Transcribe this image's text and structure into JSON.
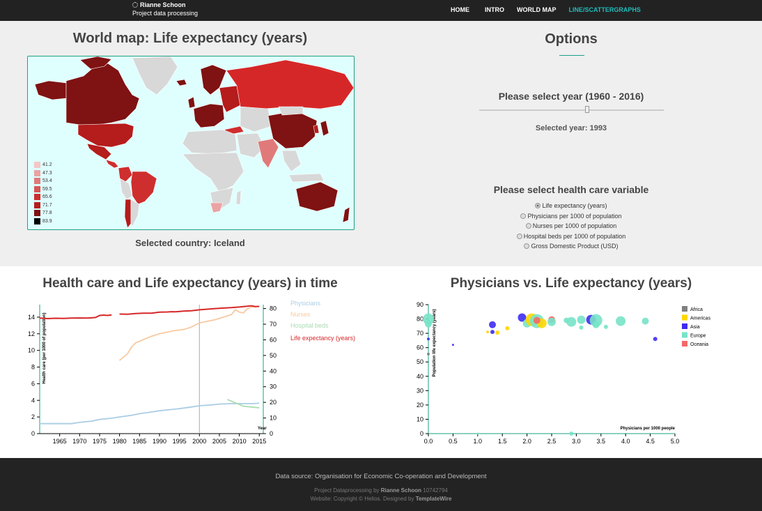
{
  "brand": {
    "name": "Rianne Schoon",
    "subtitle": "Project data processing"
  },
  "nav": {
    "items": [
      "HOME",
      "INTRO",
      "WORLD MAP",
      "LINE/SCATTERGRAPHS"
    ],
    "active": "LINE/SCATTERGRAPHS"
  },
  "map": {
    "title": "World map: Life expectancy (years)",
    "legend": [
      {
        "label": "41.2",
        "color": "#f4c6c6"
      },
      {
        "label": "47.3",
        "color": "#eba3a3"
      },
      {
        "label": "53.4",
        "color": "#e07a7a"
      },
      {
        "label": "59.5",
        "color": "#d95555"
      },
      {
        "label": "65.6",
        "color": "#cf2e2e"
      },
      {
        "label": "71.7",
        "color": "#b51c1c"
      },
      {
        "label": "77.8",
        "color": "#7f1212"
      },
      {
        "label": "83.9",
        "color": "#000000"
      }
    ],
    "selected_country": "Selected country: Iceland"
  },
  "options": {
    "title": "Options",
    "year_title": "Please select year (1960 - 2016)",
    "selected_year": "Selected year: 1993",
    "slider_value": 1993,
    "slider_range": [
      1960,
      2016
    ],
    "hc_title": "Please select health care variable",
    "variables": [
      {
        "label": "Life expectancy (years)",
        "checked": true
      },
      {
        "label": "Physicians per 1000 of population",
        "checked": false
      },
      {
        "label": "Nurses per 1000 of population",
        "checked": false
      },
      {
        "label": "Hospital beds per 1000 of population",
        "checked": false
      },
      {
        "label": "Gross Domestic Product (USD)",
        "checked": false
      }
    ]
  },
  "line_chart_title": "Health care and Life expectancy (years) in time",
  "scatter_title": "Physicians vs. Life expectancy (years)",
  "chart_data": [
    {
      "type": "line",
      "title": "Health care and Life expectancy (years) in time",
      "xlabel": "Year",
      "ylabel": "Health care (per 1000 of population)",
      "ylabel_right": "",
      "xlim": [
        1960,
        2016
      ],
      "ylim": [
        0,
        15.5
      ],
      "ylim_right": [
        0,
        82.5
      ],
      "x_ticks": [
        1965,
        1970,
        1975,
        1980,
        1985,
        1990,
        1995,
        2000,
        2005,
        2010,
        2015
      ],
      "y_ticks": [
        0,
        2,
        4,
        6,
        8,
        10,
        12,
        14
      ],
      "y_ticks_right": [
        0,
        10,
        20,
        30,
        40,
        50,
        60,
        70,
        80
      ],
      "marker_year": 2000,
      "legend_position": "right",
      "series": [
        {
          "name": "Physicians",
          "axis": "left",
          "color": "#aacde4",
          "points": [
            [
              1960,
              1.2
            ],
            [
              1965,
              1.2
            ],
            [
              1968,
              1.2
            ],
            [
              1970,
              1.35
            ],
            [
              1973,
              1.5
            ],
            [
              1975,
              1.7
            ],
            [
              1978,
              1.85
            ],
            [
              1980,
              2.0
            ],
            [
              1983,
              2.2
            ],
            [
              1985,
              2.4
            ],
            [
              1988,
              2.6
            ],
            [
              1990,
              2.75
            ],
            [
              1993,
              2.9
            ],
            [
              1995,
              3.0
            ],
            [
              1998,
              3.2
            ],
            [
              2000,
              3.35
            ],
            [
              2003,
              3.45
            ],
            [
              2005,
              3.55
            ],
            [
              2008,
              3.6
            ],
            [
              2010,
              3.6
            ],
            [
              2013,
              3.6
            ],
            [
              2015,
              3.65
            ]
          ]
        },
        {
          "name": "Nurses",
          "axis": "left",
          "color": "#f8c9a0",
          "points": [
            [
              1980,
              8.8
            ],
            [
              1982,
              9.6
            ],
            [
              1983,
              10.4
            ],
            [
              1984,
              10.9
            ],
            [
              1986,
              11.3
            ],
            [
              1988,
              11.7
            ],
            [
              1990,
              12.0
            ],
            [
              1992,
              12.2
            ],
            [
              1994,
              12.4
            ],
            [
              1996,
              12.5
            ],
            [
              1998,
              12.8
            ],
            [
              2000,
              13.3
            ],
            [
              2002,
              13.5
            ],
            [
              2004,
              13.7
            ],
            [
              2006,
              14.0
            ],
            [
              2008,
              14.3
            ],
            [
              2009,
              14.9
            ],
            [
              2010,
              14.6
            ],
            [
              2011,
              14.5
            ],
            [
              2012,
              15.0
            ],
            [
              2013,
              15.2
            ],
            [
              2015,
              15.3
            ]
          ]
        },
        {
          "name": "Hospital beds",
          "axis": "left",
          "color": "#a9ddb0",
          "points": [
            [
              2007,
              4.1
            ],
            [
              2009,
              3.7
            ],
            [
              2011,
              3.3
            ],
            [
              2013,
              3.2
            ],
            [
              2015,
              3.1
            ]
          ]
        },
        {
          "name": "Life expectancy (years)",
          "axis": "right",
          "color": "#d62728",
          "segments": [
            [
              [
                1960,
                73.9
              ],
              [
                1962,
                73.6
              ],
              [
                1964,
                73.8
              ],
              [
                1966,
                73.7
              ],
              [
                1968,
                73.9
              ],
              [
                1970,
                74.0
              ],
              [
                1972,
                73.9
              ],
              [
                1974,
                74.3
              ],
              [
                1975,
                75.6
              ],
              [
                1976,
                75.8
              ],
              [
                1977,
                75.6
              ],
              [
                1978,
                75.9
              ]
            ],
            [
              [
                1980,
                76.5
              ],
              [
                1982,
                76.4
              ],
              [
                1984,
                76.8
              ],
              [
                1986,
                77.0
              ],
              [
                1988,
                77.0
              ],
              [
                1990,
                77.7
              ],
              [
                1992,
                77.8
              ],
              [
                1993,
                78.0
              ],
              [
                1994,
                77.9
              ],
              [
                1996,
                78.4
              ],
              [
                1998,
                78.6
              ],
              [
                2000,
                79.2
              ],
              [
                2002,
                79.6
              ],
              [
                2004,
                80.0
              ],
              [
                2006,
                80.3
              ],
              [
                2008,
                80.6
              ],
              [
                2010,
                81.0
              ],
              [
                2012,
                81.5
              ],
              [
                2013,
                81.8
              ],
              [
                2014,
                81.3
              ],
              [
                2015,
                81.4
              ]
            ]
          ]
        }
      ]
    },
    {
      "type": "scatter",
      "title": "Physicians vs. Life expectancy (years)",
      "xlabel": "Physicians per 1000 people",
      "ylabel": "Population life expectancy (years)",
      "xlim": [
        0,
        5
      ],
      "ylim": [
        0,
        90
      ],
      "x_ticks": [
        0.0,
        0.5,
        1.0,
        1.5,
        2.0,
        2.5,
        3.0,
        3.5,
        4.0,
        4.5,
        5.0
      ],
      "y_ticks": [
        0,
        10,
        20,
        30,
        40,
        50,
        60,
        70,
        80,
        90
      ],
      "legend_position": "top-right",
      "legend": [
        {
          "name": "Africa",
          "color": "#808080"
        },
        {
          "name": "Americas",
          "color": "#ffd700"
        },
        {
          "name": "Asia",
          "color": "#3f2cf0"
        },
        {
          "name": "Europe",
          "color": "#77e3c8"
        },
        {
          "name": "Oceania",
          "color": "#f46868"
        }
      ],
      "points": [
        {
          "x": 0.0,
          "y": 80.0,
          "region": "Europe",
          "r": 8
        },
        {
          "x": 0.0,
          "y": 76.5,
          "region": "Europe",
          "r": 5
        },
        {
          "x": 0.0,
          "y": 66.0,
          "region": "Asia",
          "r": 2
        },
        {
          "x": 0.0,
          "y": 55.5,
          "region": "Africa",
          "r": 2
        },
        {
          "x": 0.5,
          "y": 62.0,
          "region": "Asia",
          "r": 1.5
        },
        {
          "x": 1.2,
          "y": 71.0,
          "region": "Americas",
          "r": 2
        },
        {
          "x": 1.3,
          "y": 76.0,
          "region": "Asia",
          "r": 5
        },
        {
          "x": 1.3,
          "y": 71.0,
          "region": "Asia",
          "r": 3
        },
        {
          "x": 1.4,
          "y": 70.5,
          "region": "Americas",
          "r": 3
        },
        {
          "x": 1.6,
          "y": 73.5,
          "region": "Americas",
          "r": 3
        },
        {
          "x": 1.9,
          "y": 81.0,
          "region": "Asia",
          "r": 6
        },
        {
          "x": 2.0,
          "y": 77.0,
          "region": "Europe",
          "r": 6
        },
        {
          "x": 2.1,
          "y": 79.5,
          "region": "Americas",
          "r": 9
        },
        {
          "x": 2.2,
          "y": 78.5,
          "region": "Europe",
          "r": 10
        },
        {
          "x": 2.3,
          "y": 77.0,
          "region": "Americas",
          "r": 7
        },
        {
          "x": 2.2,
          "y": 79.0,
          "region": "Oceania",
          "r": 5
        },
        {
          "x": 2.5,
          "y": 79.5,
          "region": "Oceania",
          "r": 5
        },
        {
          "x": 2.5,
          "y": 78.0,
          "region": "Europe",
          "r": 6
        },
        {
          "x": 2.8,
          "y": 79.0,
          "region": "Europe",
          "r": 4
        },
        {
          "x": 2.9,
          "y": 78.0,
          "region": "Europe",
          "r": 7
        },
        {
          "x": 3.1,
          "y": 79.5,
          "region": "Europe",
          "r": 6
        },
        {
          "x": 3.1,
          "y": 74.0,
          "region": "Europe",
          "r": 3
        },
        {
          "x": 3.3,
          "y": 79.5,
          "region": "Asia",
          "r": 7
        },
        {
          "x": 3.4,
          "y": 79.0,
          "region": "Europe",
          "r": 9
        },
        {
          "x": 3.4,
          "y": 76.0,
          "region": "Europe",
          "r": 5
        },
        {
          "x": 3.6,
          "y": 74.5,
          "region": "Europe",
          "r": 3
        },
        {
          "x": 3.9,
          "y": 78.5,
          "region": "Europe",
          "r": 7
        },
        {
          "x": 4.4,
          "y": 78.5,
          "region": "Europe",
          "r": 5
        },
        {
          "x": 4.6,
          "y": 66.0,
          "region": "Asia",
          "r": 3
        },
        {
          "x": 2.9,
          "y": 0.0,
          "region": "Europe",
          "r": 3
        },
        {
          "x": 1.0,
          "y": 0.0,
          "region": "Europe",
          "r": 1.5
        }
      ]
    }
  ],
  "footer": {
    "source_label": "Data source:",
    "source_text": "Organisation for Economic Co-operation and Development",
    "project_prefix": "Project Dataprocessing by",
    "project_author": "Rianne Schoon",
    "project_id": "10742794",
    "website_prefix": "Website: Copyright © Helios. Designed by",
    "website_designer": "TemplateWire"
  }
}
